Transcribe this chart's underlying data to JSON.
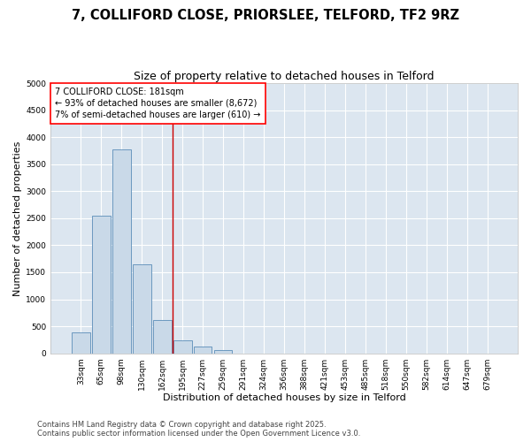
{
  "title_line1": "7, COLLIFORD CLOSE, PRIORSLEE, TELFORD, TF2 9RZ",
  "title_line2": "Size of property relative to detached houses in Telford",
  "xlabel": "Distribution of detached houses by size in Telford",
  "ylabel": "Number of detached properties",
  "categories": [
    "33sqm",
    "65sqm",
    "98sqm",
    "130sqm",
    "162sqm",
    "195sqm",
    "227sqm",
    "259sqm",
    "291sqm",
    "324sqm",
    "356sqm",
    "388sqm",
    "421sqm",
    "453sqm",
    "485sqm",
    "518sqm",
    "550sqm",
    "582sqm",
    "614sqm",
    "647sqm",
    "679sqm"
  ],
  "values": [
    380,
    2550,
    3780,
    1650,
    620,
    245,
    120,
    60,
    0,
    0,
    0,
    0,
    0,
    0,
    0,
    0,
    0,
    0,
    0,
    0,
    0
  ],
  "bar_color": "#c9d9e8",
  "bar_edge_color": "#5b8db8",
  "background_color": "#dce6f0",
  "grid_color": "#ffffff",
  "vline_x": 4.5,
  "vline_color": "#cc0000",
  "annotation_text": "7 COLLIFORD CLOSE: 181sqm\n← 93% of detached houses are smaller (8,672)\n7% of semi-detached houses are larger (610) →",
  "ylim": [
    0,
    5000
  ],
  "yticks": [
    0,
    500,
    1000,
    1500,
    2000,
    2500,
    3000,
    3500,
    4000,
    4500,
    5000
  ],
  "footer_line1": "Contains HM Land Registry data © Crown copyright and database right 2025.",
  "footer_line2": "Contains public sector information licensed under the Open Government Licence v3.0.",
  "title_fontsize": 10.5,
  "subtitle_fontsize": 9,
  "axis_label_fontsize": 8,
  "tick_fontsize": 6.5,
  "annotation_fontsize": 7,
  "footer_fontsize": 6
}
